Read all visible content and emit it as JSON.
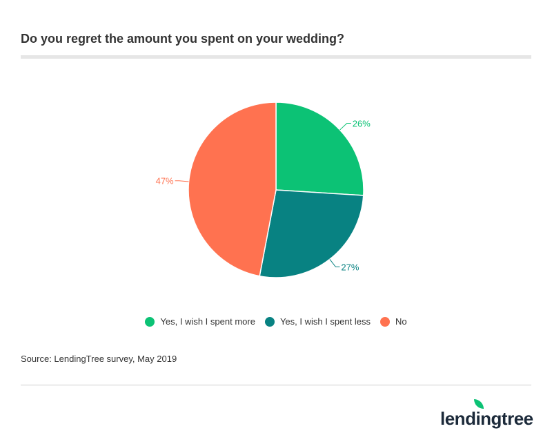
{
  "title": "Do you regret the amount you spent on your wedding?",
  "source": "Source: LendingTree survey, May 2019",
  "logo": "lendingtree",
  "chart_data": {
    "type": "pie",
    "title": "Do you regret the amount you spent on your wedding?",
    "legend_placement": "bottom",
    "slices": [
      {
        "name": "Yes, I wish I spent more",
        "value": 26,
        "label": "26%",
        "color": "#0cc275"
      },
      {
        "name": "Yes, I wish I spent less",
        "value": 27,
        "label": "27%",
        "color": "#088282"
      },
      {
        "name": "No",
        "value": 47,
        "label": "47%",
        "color": "#ff7250"
      }
    ]
  }
}
